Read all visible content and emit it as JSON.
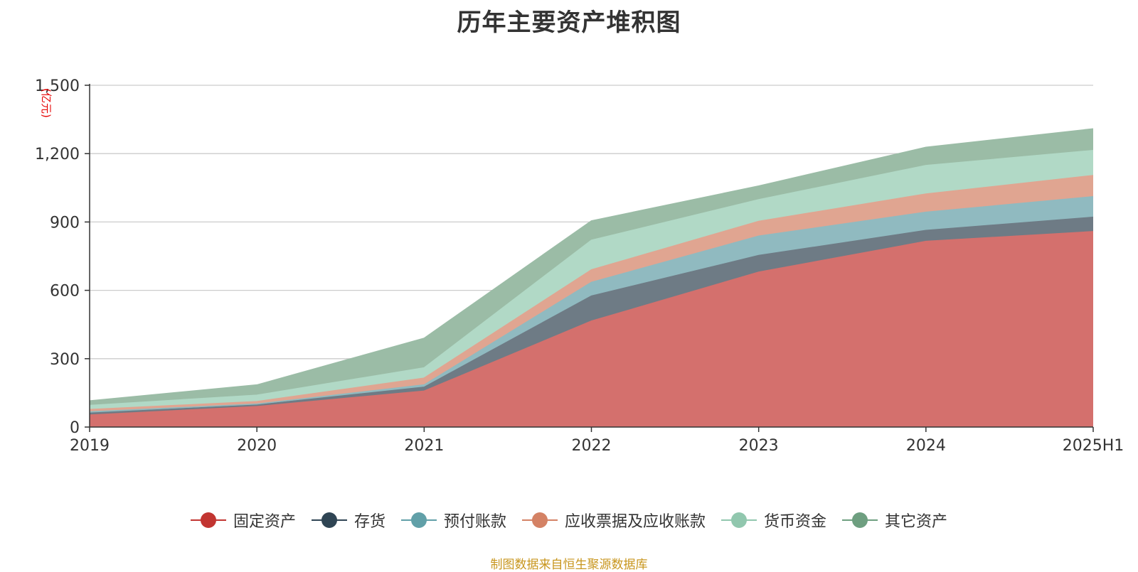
{
  "title": "历年主要资产堆积图",
  "source_note": "制图数据来自恒生聚源数据库",
  "colors": {
    "axis": "#333333",
    "grid": "#cccccc",
    "unit": "#e60000",
    "tick_text": "#333333"
  },
  "chart_data": {
    "type": "area",
    "stacked": true,
    "title": "历年主要资产堆积图",
    "ylabel": "(亿元)",
    "xlabel": "",
    "categories": [
      "2019",
      "2020",
      "2021",
      "2022",
      "2023",
      "2024",
      "2025H1"
    ],
    "ylim": [
      0,
      1500
    ],
    "yticks": [
      0,
      300,
      600,
      900,
      1200,
      1500
    ],
    "ytick_labels": [
      "0",
      "300",
      "600",
      "900",
      "1,200",
      "1,500"
    ],
    "grid": true,
    "legend_position": "bottom",
    "series": [
      {
        "name": "固定资产",
        "color": "#c23531",
        "fill": "#d4706d",
        "values": [
          53,
          90,
          158,
          465,
          680,
          815,
          858
        ]
      },
      {
        "name": "存货",
        "color": "#2f4554",
        "fill": "#6e7b85",
        "values": [
          8,
          7,
          17,
          110,
          73,
          48,
          63
        ]
      },
      {
        "name": "预付账款",
        "color": "#61a0a8",
        "fill": "#90bac0",
        "values": [
          6,
          4,
          10,
          60,
          85,
          80,
          90
        ]
      },
      {
        "name": "应收票据及应收账款",
        "color": "#d48265",
        "fill": "#e0a591",
        "values": [
          10,
          11,
          30,
          55,
          65,
          80,
          93
        ]
      },
      {
        "name": "货币资金",
        "color": "#91c7ae",
        "fill": "#b1d9c6",
        "values": [
          18,
          28,
          45,
          130,
          95,
          125,
          110
        ]
      },
      {
        "name": "其它资产",
        "color": "#6e9f80",
        "fill": "#9bbca6",
        "values": [
          20,
          45,
          130,
          85,
          60,
          80,
          95
        ]
      }
    ]
  }
}
